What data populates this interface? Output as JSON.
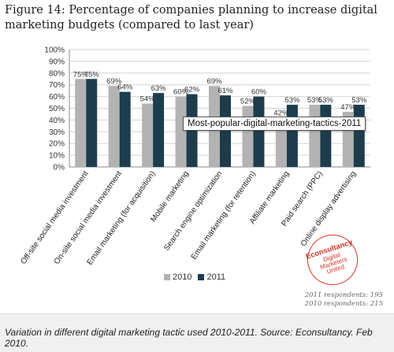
{
  "figure": {
    "title": "Figure 14: Percentage of companies planning to increase digital marketing budgets (compared to last year)"
  },
  "tooltip": "Most-popular-digital-marketing-tactics-2011",
  "respondents": [
    "2011 respondents: 195",
    "2010 respondents: 215"
  ],
  "logo": {
    "brand": "Econsultancy",
    "line1": "Digital",
    "line2": "Marketers",
    "line3": "United"
  },
  "caption": "Variation in different digital marketing tactic used 2010-2011. Source: Econsultancy. Feb 2010.",
  "colors": {
    "series_2010": "#b3b3b3",
    "series_2011": "#1d3d4d",
    "logo": "#d9342b"
  },
  "chart_data": {
    "type": "bar",
    "categories": [
      "Off-site social media investment",
      "On-site social media investment",
      "Email marketing (for acquisition)",
      "Mobile marketing",
      "Search engine optimization",
      "Email marketing (for retention)",
      "Affiliate marketing",
      "Paid search (PPC)",
      "Online display advertising"
    ],
    "series": [
      {
        "name": "2010",
        "values": [
          75,
          69,
          54,
          60,
          69,
          52,
          42,
          53,
          47
        ],
        "labels": [
          "75%",
          "69%",
          "54%",
          "60%",
          "69%",
          "52%",
          "42%",
          "53%",
          "47%"
        ]
      },
      {
        "name": "2011",
        "values": [
          75,
          64,
          63,
          62,
          61,
          60,
          53,
          53,
          53
        ],
        "labels": [
          "75%",
          "64%",
          "63%",
          "62%",
          "61%",
          "60%",
          "53%",
          "53%",
          "53%"
        ]
      }
    ],
    "yticks": [
      "0%",
      "10%",
      "20%",
      "30%",
      "40%",
      "50%",
      "60%",
      "70%",
      "80%",
      "90%",
      "100%"
    ],
    "ylim": [
      0,
      100
    ],
    "grid": true,
    "legend_position": "bottom"
  }
}
